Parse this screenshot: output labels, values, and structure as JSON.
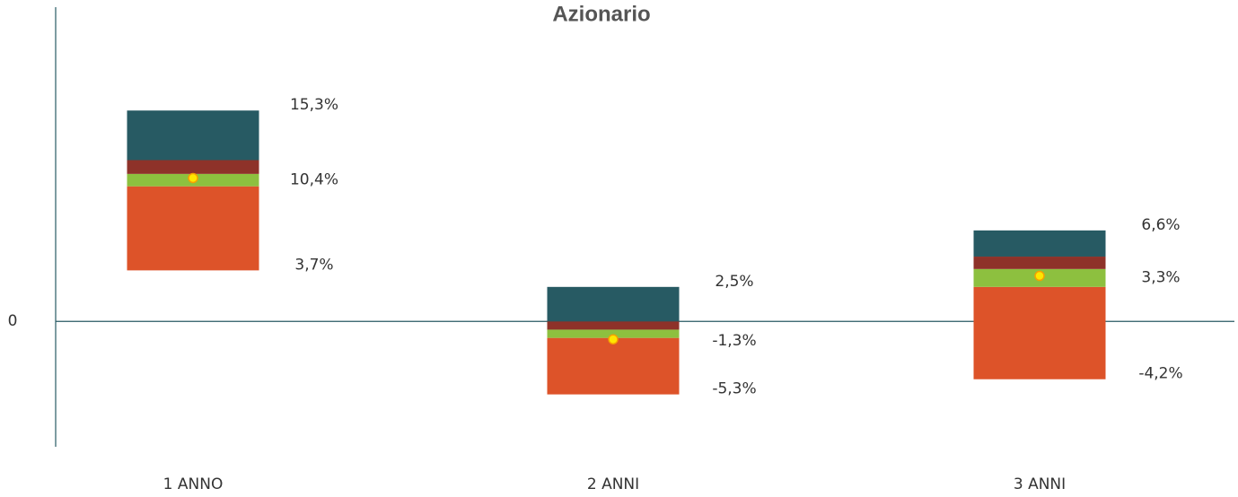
{
  "chart_data": {
    "type": "floating_stacked_bar",
    "title": "Azionario",
    "categories": [
      "1 ANNO",
      "2 ANNI",
      "3 ANNI"
    ],
    "low": {
      "values": [
        3.7,
        -5.3,
        -4.2
      ],
      "value_labels": [
        "3,7%",
        "-5,3%",
        "-4,2%"
      ]
    },
    "series": [
      {
        "color": "#dd5329",
        "values": [
          6.1,
          4.1,
          6.7
        ]
      },
      {
        "color": "#8dc03f",
        "values": [
          0.9,
          0.6,
          1.3
        ]
      },
      {
        "color": "#8e3229",
        "values": [
          1.0,
          0.6,
          0.9
        ]
      },
      {
        "color": "#275a63",
        "values": [
          3.6,
          2.5,
          1.9
        ]
      }
    ],
    "high": {
      "values": [
        15.3,
        2.5,
        6.6
      ],
      "value_labels": [
        "15,3%",
        "2,5%",
        "6,6%"
      ]
    },
    "median": {
      "color": "#ffe600",
      "values": [
        10.4,
        -1.3,
        3.3
      ],
      "value_labels": [
        "10,4%",
        "-1,3%",
        "3,3%"
      ]
    },
    "ylim": [
      -9.1,
      22.8
    ],
    "yticks": [
      0
    ]
  }
}
